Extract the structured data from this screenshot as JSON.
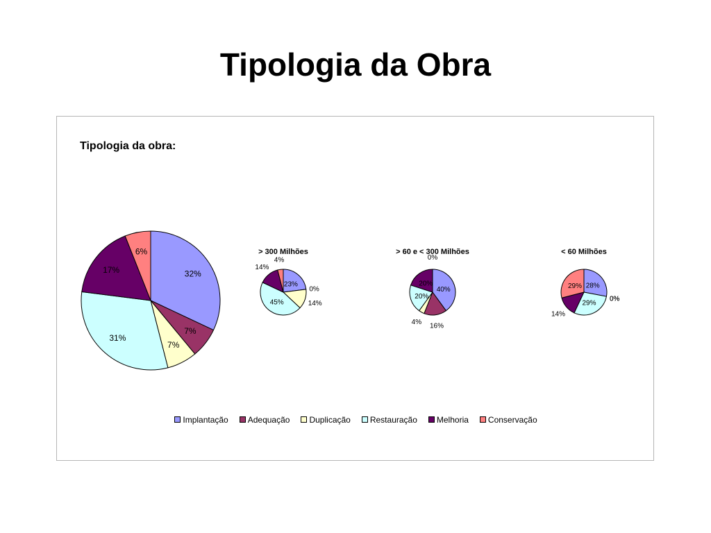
{
  "page": {
    "title": "Tipologia da Obra"
  },
  "chart_heading": "Tipologia da obra:",
  "colors": {
    "Implantação": "#9999ff",
    "Adequação": "#993366",
    "Duplicação": "#ffffcc",
    "Restauração": "#ccffff",
    "Melhoria": "#660066",
    "Conservação": "#ff8080"
  },
  "chart_data": [
    {
      "type": "pie",
      "title": "",
      "categories": [
        "Implantação",
        "Adequação",
        "Duplicação",
        "Restauração",
        "Melhoria",
        "Conservação"
      ],
      "values": [
        32,
        7,
        7,
        31,
        17,
        6
      ],
      "labels": [
        "32%",
        "7%",
        "7%",
        "31%",
        "17%",
        "6%"
      ]
    },
    {
      "type": "pie",
      "title": "> 300 Milhões",
      "categories": [
        "Implantação",
        "Adequação",
        "Duplicação",
        "Restauração",
        "Melhoria",
        "Conservação"
      ],
      "values": [
        23,
        0,
        14,
        45,
        14,
        4
      ],
      "labels": [
        "23%",
        "0%",
        "14%",
        "45%",
        "14%",
        "4%"
      ]
    },
    {
      "type": "pie",
      "title": "> 60 e < 300 Milhões",
      "categories": [
        "Implantação",
        "Adequação",
        "Duplicação",
        "Restauração",
        "Melhoria",
        "Conservação"
      ],
      "values": [
        40,
        16,
        4,
        20,
        20,
        0
      ],
      "labels": [
        "40%",
        "16%",
        "4%",
        "20%",
        "20%",
        "0%"
      ]
    },
    {
      "type": "pie",
      "title": "< 60 Milhões",
      "categories": [
        "Implantação",
        "Adequação",
        "Duplicação",
        "Restauração",
        "Melhoria",
        "Conservação"
      ],
      "values": [
        28,
        0,
        0,
        29,
        14,
        29
      ],
      "labels": [
        "28%",
        "0%",
        "0%",
        "29%",
        "14%",
        "29%"
      ]
    }
  ],
  "legend": {
    "position": "bottom",
    "items": [
      "Implantação",
      "Adequação",
      "Duplicação",
      "Restauração",
      "Melhoria",
      "Conservação"
    ]
  }
}
